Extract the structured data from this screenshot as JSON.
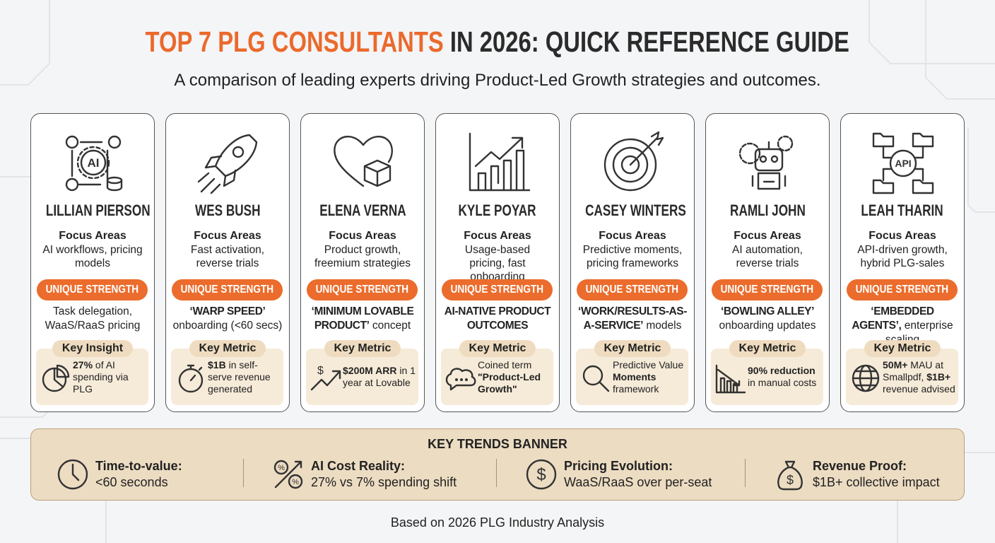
{
  "header": {
    "title_highlight": "TOP 7 PLG CONSULTANTS",
    "title_rest": "IN 2026: QUICK REFERENCE GUIDE",
    "subtitle": "A comparison of leading experts driving Product-Led Growth strategies and outcomes."
  },
  "cards": [
    {
      "icon_label": "AI",
      "name": "LILLIAN PIERSON",
      "focus_label": "Focus Areas",
      "focus": "AI workflows, pricing models",
      "strength_label": "UNIQUE STRENGTH",
      "strength": [
        {
          "text": "Task delegation, WaaS/RaaS pricing"
        }
      ],
      "metric_label": "Key Insight",
      "metric": [
        {
          "text": "27%",
          "bold": true
        },
        {
          "text": " of AI spending via PLG"
        }
      ]
    },
    {
      "name": "WES BUSH",
      "focus_label": "Focus Areas",
      "focus": "Fast activation, reverse trials",
      "strength_label": "UNIQUE STRENGTH",
      "strength": [
        {
          "text": "‘WARP SPEED’",
          "bold": true
        },
        {
          "text": " onboarding (<60 secs)"
        }
      ],
      "metric_label": "Key Metric",
      "metric": [
        {
          "text": "$1B",
          "bold": true
        },
        {
          "text": " in self-serve revenue generated"
        }
      ]
    },
    {
      "name": "ELENA VERNA",
      "focus_label": "Focus Areas",
      "focus": "Product growth, freemium strategies",
      "strength_label": "UNIQUE STRENGTH",
      "strength": [
        {
          "text": "‘MINIMUM LOVABLE PRODUCT’",
          "bold": true
        },
        {
          "text": " concept"
        }
      ],
      "metric_label": "Key Metric",
      "metric": [
        {
          "text": "$200M ARR",
          "bold": true
        },
        {
          "text": " in 1 year at Lovable"
        }
      ]
    },
    {
      "name": "KYLE POYAR",
      "focus_label": "Focus Areas",
      "focus": "Usage-based pricing, fast onboarding",
      "strength_label": "UNIQUE STRENGTH",
      "strength": [
        {
          "text": "AI-NATIVE PRODUCT OUTCOMES",
          "bold": true
        }
      ],
      "metric_label": "Key Metric",
      "metric": [
        {
          "text": "Coined term "
        },
        {
          "text": "\"Product-Led Growth\"",
          "bold": true
        }
      ]
    },
    {
      "name": "CASEY WINTERS",
      "focus_label": "Focus Areas",
      "focus": "Predictive moments, pricing frameworks",
      "strength_label": "UNIQUE STRENGTH",
      "strength": [
        {
          "text": "‘WORK/RESULTS-AS-A-SERVICE’",
          "bold": true
        },
        {
          "text": " models"
        }
      ],
      "metric_label": "Key Metric",
      "metric": [
        {
          "text": "Predictive Value "
        },
        {
          "text": "Moments",
          "bold": true
        },
        {
          "text": " framework"
        }
      ]
    },
    {
      "name": "RAMLI JOHN",
      "focus_label": "Focus Areas",
      "focus": "AI automation, reverse trials",
      "strength_label": "UNIQUE STRENGTH",
      "strength": [
        {
          "text": "‘BOWLING ALLEY’",
          "bold": true
        },
        {
          "text": " onboarding updates"
        }
      ],
      "metric_label": "Key Metric",
      "metric": [
        {
          "text": "90% reduction",
          "bold": true
        },
        {
          "text": " in manual costs"
        }
      ]
    },
    {
      "icon_label": "API",
      "name": "LEAH THARIN",
      "focus_label": "Focus Areas",
      "focus": "API-driven growth, hybrid PLG-sales",
      "strength_label": "UNIQUE STRENGTH",
      "strength": [
        {
          "text": "‘EMBEDDED AGENTS’,",
          "bold": true
        },
        {
          "text": " enterprise scaling"
        }
      ],
      "metric_label": "Key Metric",
      "metric": [
        {
          "text": "50M+",
          "bold": true
        },
        {
          "text": " MAU at Smallpdf, "
        },
        {
          "text": "$1B+",
          "bold": true
        },
        {
          "text": " revenue advised"
        }
      ]
    }
  ],
  "banner": {
    "title": "KEY TRENDS BANNER",
    "items": [
      {
        "title": "Time-to-value:",
        "text": "<60 seconds"
      },
      {
        "title": "AI Cost Reality:",
        "text": "27% vs 7% spending shift"
      },
      {
        "title": "Pricing Evolution:",
        "text": "WaaS/RaaS over per-seat"
      },
      {
        "title": "Revenue Proof:",
        "text": "$1B+ collective impact"
      }
    ]
  },
  "footer": "Based on 2026 PLG Industry Analysis"
}
